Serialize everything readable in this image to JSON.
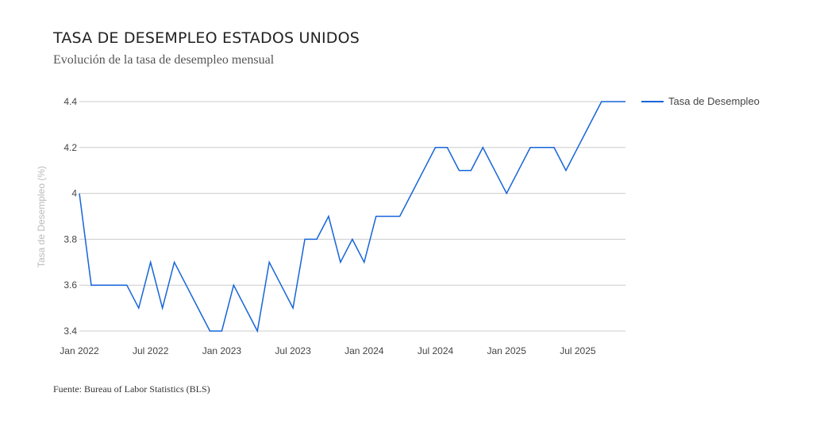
{
  "title": "TASA DE DESEMPLEO ESTADOS UNIDOS",
  "subtitle": "Evolución de la tasa de desempleo mensual",
  "source": "Fuente: Bureau of Labor Statistics (BLS)",
  "colors": {
    "line": "#1565d8",
    "grid": "#cccccc"
  },
  "chart_data": {
    "type": "line",
    "xlabel": "",
    "ylabel": "Tasa de Desempleo (%)",
    "ylim": [
      3.4,
      4.4
    ],
    "yticks": [
      {
        "value": 3.4,
        "label": "3.4"
      },
      {
        "value": 3.6,
        "label": "3.6"
      },
      {
        "value": 3.8,
        "label": "3.8"
      },
      {
        "value": 4.0,
        "label": "4"
      },
      {
        "value": 4.2,
        "label": "4.2"
      },
      {
        "value": 4.4,
        "label": "4.4"
      }
    ],
    "xticks": [
      "Jan 2022",
      "Jul 2022",
      "Jan 2023",
      "Jul 2023",
      "Jan 2024",
      "Jul 2024",
      "Jan 2025",
      "Jul 2025"
    ],
    "grid": true,
    "legend_position": "top-right",
    "series": [
      {
        "name": "Tasa de Desempleo",
        "x": [
          "2022-01",
          "2022-02",
          "2022-03",
          "2022-04",
          "2022-05",
          "2022-06",
          "2022-07",
          "2022-08",
          "2022-09",
          "2022-10",
          "2022-11",
          "2022-12",
          "2023-01",
          "2023-02",
          "2023-03",
          "2023-04",
          "2023-05",
          "2023-06",
          "2023-07",
          "2023-08",
          "2023-09",
          "2023-10",
          "2023-11",
          "2023-12",
          "2024-01",
          "2024-02",
          "2024-03",
          "2024-04",
          "2024-05",
          "2024-06",
          "2024-07",
          "2024-08",
          "2024-09",
          "2024-10",
          "2024-11",
          "2024-12",
          "2025-01",
          "2025-02",
          "2025-03",
          "2025-04",
          "2025-05",
          "2025-06",
          "2025-07",
          "2025-08",
          "2025-09",
          "2025-10",
          "2025-11"
        ],
        "values": [
          4.0,
          3.6,
          3.6,
          3.6,
          3.6,
          3.5,
          3.7,
          3.5,
          3.7,
          3.6,
          3.5,
          3.4,
          3.4,
          3.6,
          3.5,
          3.4,
          3.7,
          3.6,
          3.5,
          3.8,
          3.8,
          3.9,
          3.7,
          3.8,
          3.7,
          3.9,
          3.9,
          3.9,
          4.0,
          4.1,
          4.2,
          4.2,
          4.1,
          4.1,
          4.2,
          4.1,
          4.0,
          4.1,
          4.2,
          4.2,
          4.2,
          4.1,
          4.2,
          4.3,
          4.4,
          4.4,
          4.4
        ]
      }
    ]
  }
}
